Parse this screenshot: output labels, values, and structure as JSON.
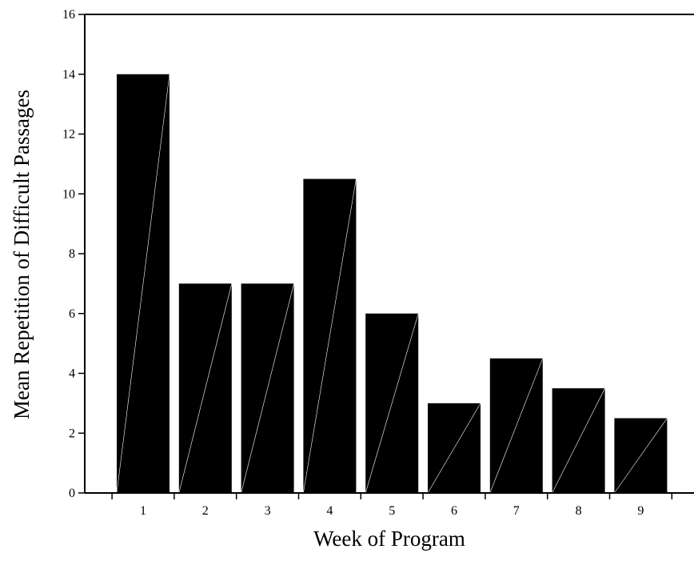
{
  "chart_data": {
    "type": "bar",
    "title": "",
    "xlabel": "Week of Program",
    "ylabel": "Mean Repetition of Difficult Passages",
    "categories": [
      "1",
      "2",
      "3",
      "4",
      "5",
      "6",
      "7",
      "8",
      "9"
    ],
    "values": [
      14,
      7,
      7,
      10.5,
      6,
      3,
      4.5,
      3.5,
      2.5
    ],
    "ylim": [
      0,
      16
    ],
    "yticks": [
      0,
      2,
      4,
      6,
      8,
      10,
      12,
      14,
      16
    ],
    "yticklabels": [
      "0",
      "2",
      "4",
      "6",
      "8",
      "10",
      "12",
      "14",
      "16"
    ],
    "grid": false,
    "legend": "none",
    "bar_color": "#000000",
    "diagonal_color": "#ffffff"
  }
}
